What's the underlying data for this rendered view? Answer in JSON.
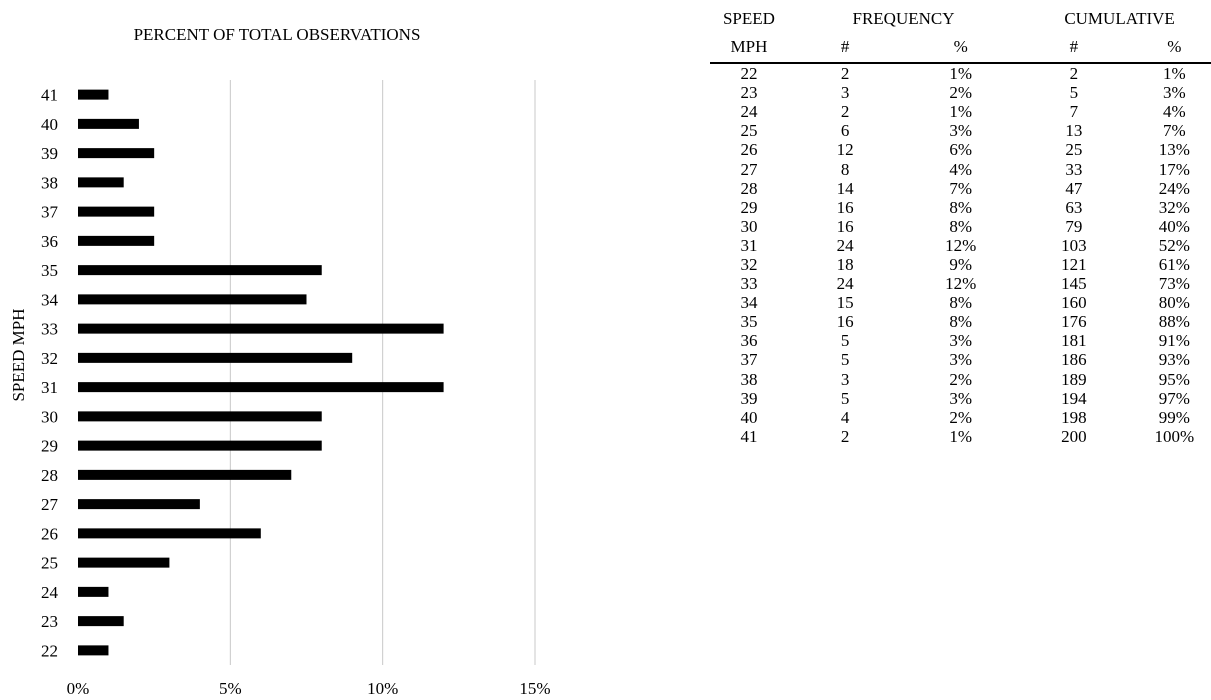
{
  "chart_data": {
    "type": "bar",
    "orientation": "horizontal",
    "title": "PERCENT OF TOTAL OBSERVATIONS",
    "ylabel": "SPEED MPH",
    "xlabel": "",
    "categories": [
      22,
      23,
      24,
      25,
      26,
      27,
      28,
      29,
      30,
      31,
      32,
      33,
      34,
      35,
      36,
      37,
      38,
      39,
      40,
      41
    ],
    "values": [
      1,
      1.5,
      1,
      3,
      6,
      4,
      7,
      8,
      8,
      12,
      9,
      12,
      7.5,
      8,
      2.5,
      2.5,
      1.5,
      2.5,
      2,
      1
    ],
    "value_unit": "%",
    "xlim": [
      0,
      15
    ],
    "xticks": [
      "0%",
      "5%",
      "10%",
      "15%"
    ],
    "grid": "vertical",
    "bar_color": "#000000",
    "grid_color": "#c8c8c8"
  },
  "table": {
    "header_row1": [
      "SPEED",
      "FREQUENCY",
      "CUMULATIVE"
    ],
    "header_row2": [
      "MPH",
      "#",
      "%",
      "#",
      "%"
    ],
    "rows": [
      [
        "22",
        "2",
        "1%",
        "2",
        "1%"
      ],
      [
        "23",
        "3",
        "2%",
        "5",
        "3%"
      ],
      [
        "24",
        "2",
        "1%",
        "7",
        "4%"
      ],
      [
        "25",
        "6",
        "3%",
        "13",
        "7%"
      ],
      [
        "26",
        "12",
        "6%",
        "25",
        "13%"
      ],
      [
        "27",
        "8",
        "4%",
        "33",
        "17%"
      ],
      [
        "28",
        "14",
        "7%",
        "47",
        "24%"
      ],
      [
        "29",
        "16",
        "8%",
        "63",
        "32%"
      ],
      [
        "30",
        "16",
        "8%",
        "79",
        "40%"
      ],
      [
        "31",
        "24",
        "12%",
        "103",
        "52%"
      ],
      [
        "32",
        "18",
        "9%",
        "121",
        "61%"
      ],
      [
        "33",
        "24",
        "12%",
        "145",
        "73%"
      ],
      [
        "34",
        "15",
        "8%",
        "160",
        "80%"
      ],
      [
        "35",
        "16",
        "8%",
        "176",
        "88%"
      ],
      [
        "36",
        "5",
        "3%",
        "181",
        "91%"
      ],
      [
        "37",
        "5",
        "3%",
        "186",
        "93%"
      ],
      [
        "38",
        "3",
        "2%",
        "189",
        "95%"
      ],
      [
        "39",
        "5",
        "3%",
        "194",
        "97%"
      ],
      [
        "40",
        "4",
        "2%",
        "198",
        "99%"
      ],
      [
        "41",
        "2",
        "1%",
        "200",
        "100%"
      ]
    ]
  }
}
